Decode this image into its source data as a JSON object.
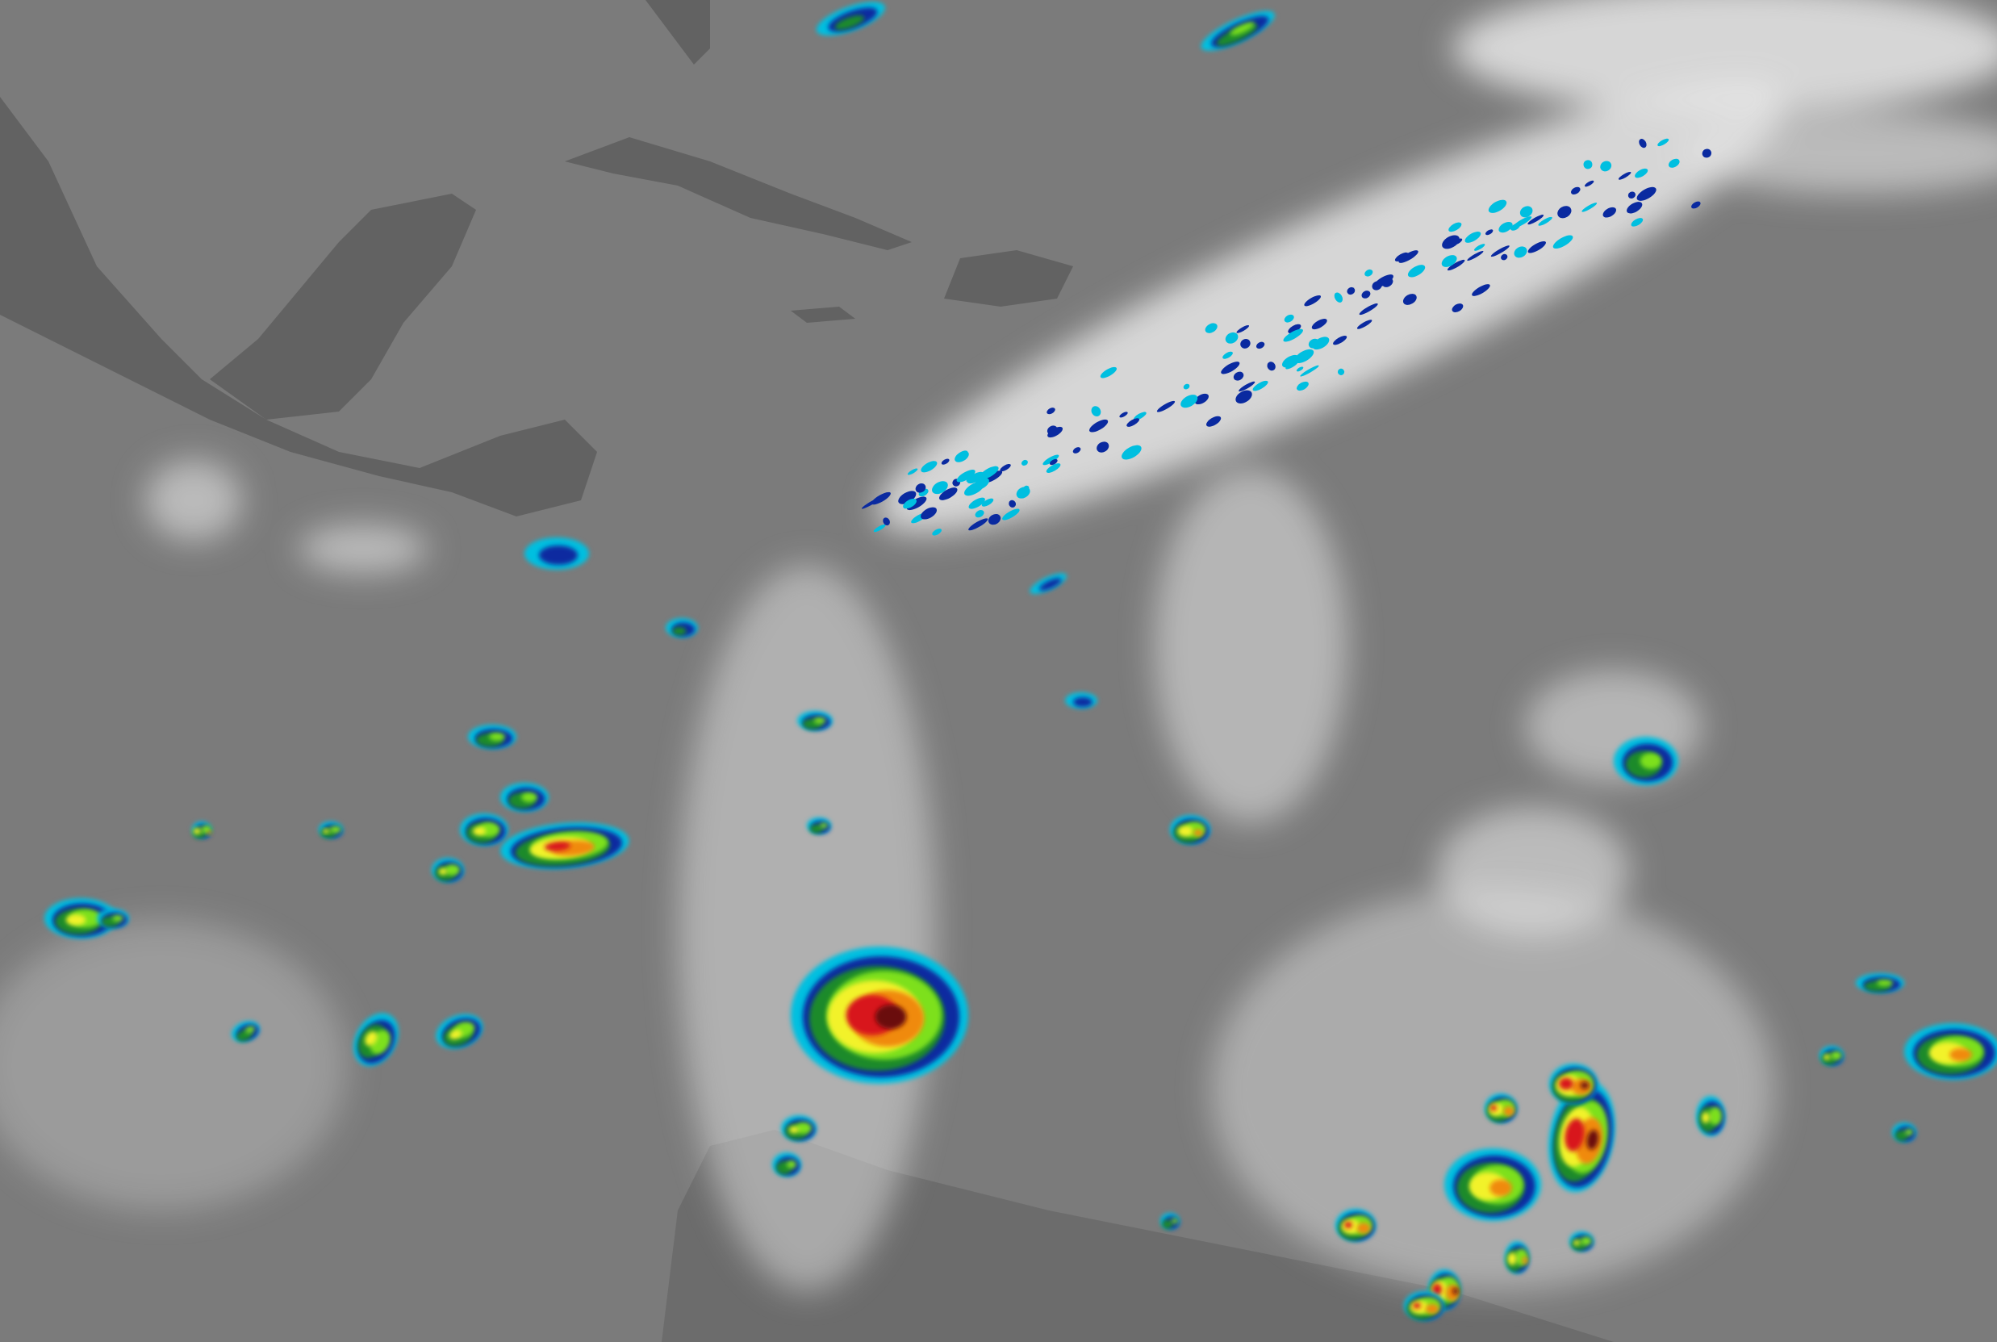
{
  "image": {
    "kind": "enhanced infrared satellite imagery",
    "colors": {
      "ocean": "#7b7b7b",
      "land": "#5e5e5e",
      "cloud": "#e8e8e8",
      "cold_top_scale": [
        "#00bfe0",
        "#0a2aa0",
        "#1e8a2a",
        "#7de01e",
        "#f2f22a",
        "#f08a10",
        "#d8141e",
        "#6a0a0a"
      ]
    }
  }
}
